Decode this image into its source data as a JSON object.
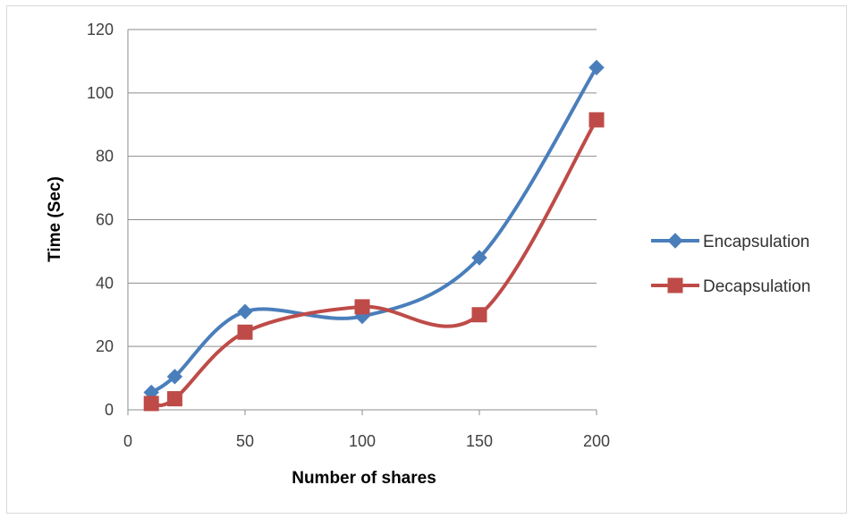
{
  "chart_data": {
    "type": "line",
    "title": "",
    "xlabel": "Number of shares",
    "ylabel": "Time  (Sec)",
    "xlim": [
      0,
      200
    ],
    "ylim": [
      0,
      120
    ],
    "x_ticks": [
      "0",
      "50",
      "100",
      "150",
      "200"
    ],
    "y_ticks": [
      "0",
      "20",
      "40",
      "60",
      "80",
      "100",
      "120"
    ],
    "grid": "horizontal",
    "legend_position": "right",
    "smooth": true,
    "series": [
      {
        "name": "Encapsulation",
        "color": "#4a7ebb",
        "marker": "diamond",
        "x": [
          10,
          20,
          50,
          100,
          150,
          200
        ],
        "y": [
          5.5,
          10.5,
          31,
          29.5,
          48,
          108
        ]
      },
      {
        "name": "Decapsulation",
        "color": "#be4b48",
        "marker": "square",
        "x": [
          10,
          20,
          50,
          100,
          150,
          200
        ],
        "y": [
          2,
          3.5,
          24.5,
          32.5,
          30,
          91.5
        ]
      }
    ]
  }
}
